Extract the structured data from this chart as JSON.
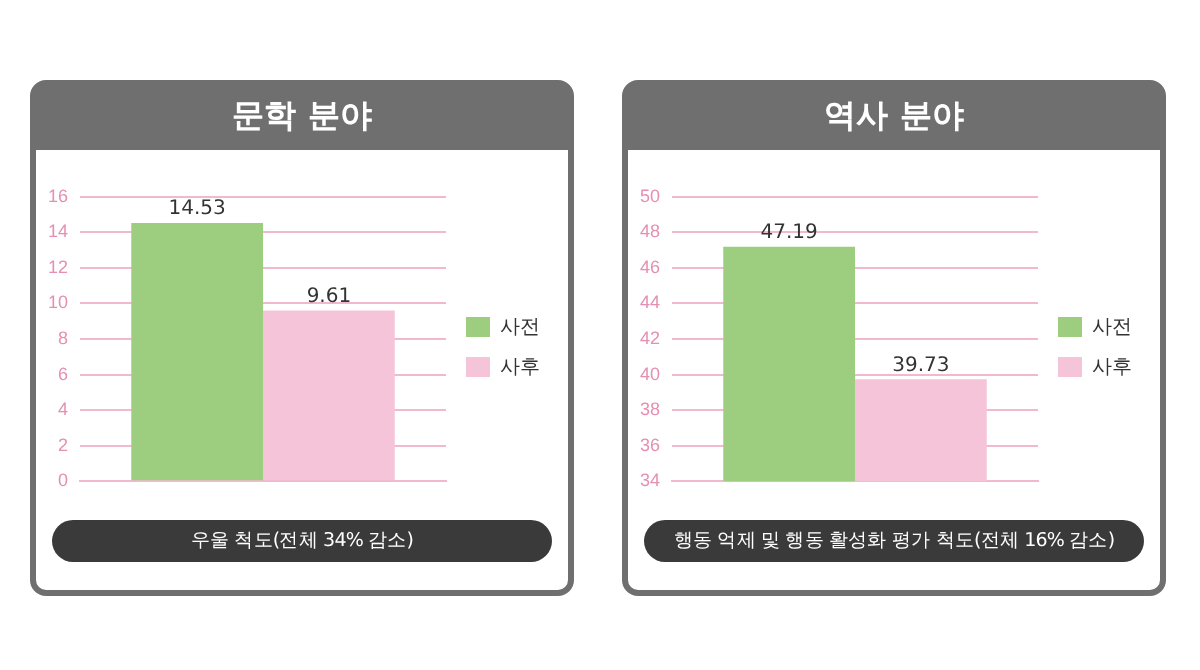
{
  "chart_data": [
    {
      "type": "bar",
      "title": "문학 분야",
      "categories": [
        null
      ],
      "series": [
        {
          "name": "사전",
          "color": "#9dcd7f",
          "values": [
            14.53
          ]
        },
        {
          "name": "사후",
          "color": "#f5c4d9",
          "values": [
            9.61
          ]
        }
      ],
      "ylim": [
        0,
        16
      ],
      "yticks": [
        0,
        2,
        4,
        6,
        8,
        10,
        12,
        14,
        16
      ],
      "grid": "y",
      "legend": "right",
      "data_labels": true,
      "tick_labels": "y",
      "annotations": [
        "우울 척도(전체 34% 감소)"
      ]
    },
    {
      "type": "bar",
      "title": "역사 분야",
      "categories": [
        null
      ],
      "series": [
        {
          "name": "사전",
          "color": "#9dcd7f",
          "values": [
            47.19
          ]
        },
        {
          "name": "사후",
          "color": "#f5c4d9",
          "values": [
            39.73
          ]
        }
      ],
      "ylim": [
        34,
        50
      ],
      "yticks": [
        34,
        36,
        38,
        40,
        42,
        44,
        46,
        48,
        50
      ],
      "grid": "y",
      "legend": "right",
      "data_labels": true,
      "tick_labels": "y",
      "annotations": [
        "행동 억제 및 행동 활성화 평가 척도(전체 16% 감소)"
      ]
    }
  ]
}
